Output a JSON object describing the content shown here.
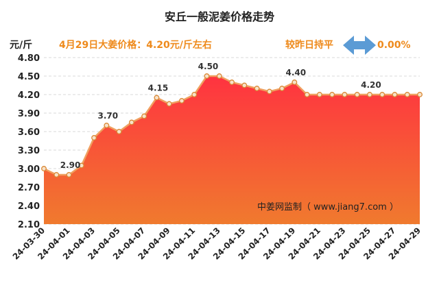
{
  "chart_data": {
    "type": "area",
    "title": "安丘一般泥姜价格走势",
    "ylabel": "元/斤",
    "price_note": "4月29日大姜价格：4.20元/斤左右",
    "change_label": "较昨日持平",
    "change_value": "0.00%",
    "watermark": "中姜网监制（ www.jiang7.com ）",
    "ylim": [
      2.1,
      4.8
    ],
    "y_ticks": [
      "4.80",
      "4.50",
      "4.20",
      "3.90",
      "3.60",
      "3.30",
      "3.00",
      "2.70",
      "2.40",
      "2.10"
    ],
    "x_ticks": [
      "24-03-30",
      "24-04-01",
      "24-04-03",
      "24-04-05",
      "24-04-07",
      "24-04-09",
      "24-04-11",
      "24-04-13",
      "24-04-15",
      "24-04-17",
      "24-04-19",
      "24-04-21",
      "24-04-23",
      "24-04-25",
      "24-04-27",
      "24-04-29"
    ],
    "x": [
      "24-03-30",
      "24-03-31",
      "24-04-01",
      "24-04-02",
      "24-04-03",
      "24-04-04",
      "24-04-05",
      "24-04-06",
      "24-04-07",
      "24-04-08",
      "24-04-09",
      "24-04-10",
      "24-04-11",
      "24-04-12",
      "24-04-13",
      "24-04-14",
      "24-04-15",
      "24-04-16",
      "24-04-17",
      "24-04-18",
      "24-04-19",
      "24-04-20",
      "24-04-21",
      "24-04-22",
      "24-04-23",
      "24-04-24",
      "24-04-25",
      "24-04-26",
      "24-04-27",
      "24-04-28",
      "24-04-29"
    ],
    "values": [
      3.0,
      2.9,
      2.9,
      3.05,
      3.5,
      3.7,
      3.6,
      3.75,
      3.85,
      4.15,
      4.05,
      4.1,
      4.2,
      4.5,
      4.5,
      4.4,
      4.35,
      4.3,
      4.25,
      4.3,
      4.4,
      4.2,
      4.2,
      4.2,
      4.2,
      4.2,
      4.2,
      4.2,
      4.2,
      4.2,
      4.2
    ],
    "data_labels": [
      {
        "index": 2,
        "text": "2.90"
      },
      {
        "index": 5,
        "text": "3.70"
      },
      {
        "index": 9,
        "text": "4.15"
      },
      {
        "index": 13,
        "text": "4.50"
      },
      {
        "index": 20,
        "text": "4.40"
      },
      {
        "index": 26,
        "text": "4.20"
      }
    ],
    "grid": true,
    "colors": {
      "fill_top": "#ff3340",
      "fill_bottom": "#f07a2e",
      "line": "#f0a060",
      "marker_fill": "#f7e2c9",
      "marker_stroke": "#d98835",
      "arrow": "#5b9bd5",
      "note": "#ee8a1c"
    }
  }
}
